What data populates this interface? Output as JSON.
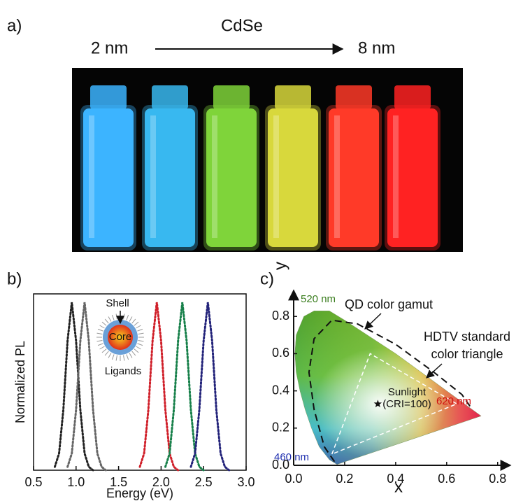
{
  "panel_a": {
    "label": "a)",
    "material": "CdSe",
    "size_start": "2 nm",
    "size_end": "8 nm"
  },
  "chart_data": [
    {
      "type": "line",
      "panel_label": "b)",
      "xlabel": "Energy (eV)",
      "ylabel": "Normalized PL",
      "xlim": [
        0.5,
        3.0
      ],
      "ylim": [
        0,
        1.05
      ],
      "xticks": [
        0.5,
        {
          "value": 1,
          "label": "1.0"
        },
        1.5,
        {
          "value": 2,
          "label": "2.0"
        },
        2.5,
        {
          "value": 3,
          "label": "3.0"
        }
      ],
      "annotations": {
        "shell": "Shell",
        "core": "Core",
        "ligands": "Ligands"
      },
      "series": [
        {
          "color": "#222222",
          "x": [
            0.75,
            0.8,
            0.85,
            0.9,
            0.95,
            1.0,
            1.05,
            1.1,
            1.15,
            1.2
          ],
          "values": [
            0.02,
            0.1,
            0.36,
            0.77,
            1,
            0.77,
            0.36,
            0.1,
            0.02,
            0
          ]
        },
        {
          "color": "#666666",
          "x": [
            0.9,
            0.95,
            1.0,
            1.05,
            1.1,
            1.15,
            1.2,
            1.25,
            1.3,
            1.35
          ],
          "values": [
            0.02,
            0.1,
            0.36,
            0.77,
            1,
            0.77,
            0.36,
            0.1,
            0.02,
            0
          ]
        },
        {
          "color": "#d0202a",
          "x": [
            1.75,
            1.8,
            1.85,
            1.9,
            1.95,
            2.0,
            2.05,
            2.1,
            2.15,
            2.2
          ],
          "values": [
            0.02,
            0.1,
            0.36,
            0.77,
            1,
            0.77,
            0.36,
            0.1,
            0.02,
            0
          ]
        },
        {
          "color": "#17804a",
          "x": [
            2.05,
            2.1,
            2.15,
            2.2,
            2.25,
            2.3,
            2.35,
            2.4,
            2.45,
            2.5
          ],
          "values": [
            0.02,
            0.1,
            0.36,
            0.77,
            1,
            0.77,
            0.36,
            0.1,
            0.02,
            0
          ]
        },
        {
          "color": "#23237a",
          "x": [
            2.35,
            2.4,
            2.45,
            2.5,
            2.55,
            2.6,
            2.65,
            2.7,
            2.75,
            2.8
          ],
          "values": [
            0.02,
            0.1,
            0.36,
            0.77,
            1,
            0.77,
            0.36,
            0.1,
            0.02,
            0
          ]
        }
      ]
    },
    {
      "type": "chromaticity",
      "panel_label": "c)",
      "xlabel": "x",
      "ylabel": "y",
      "xlim": [
        0,
        0.85
      ],
      "ylim": [
        0,
        0.94
      ],
      "xticks": [
        {
          "value": 0,
          "label": "0.0"
        },
        0.2,
        0.4,
        0.6,
        0.8
      ],
      "yticks": [
        {
          "value": 0,
          "label": "0.0"
        },
        0.2,
        0.4,
        0.6,
        0.8
      ],
      "spectral_locus": {
        "x": [
          0.17,
          0.14,
          0.1,
          0.07,
          0.045,
          0.025,
          0.01,
          0.005,
          0.01,
          0.04,
          0.08,
          0.14,
          0.2,
          0.3,
          0.4,
          0.5,
          0.6,
          0.7,
          0.735,
          0.17
        ],
        "values": [
          0.005,
          0.03,
          0.1,
          0.2,
          0.3,
          0.4,
          0.5,
          0.6,
          0.7,
          0.8,
          0.83,
          0.83,
          0.78,
          0.69,
          0.6,
          0.5,
          0.4,
          0.3,
          0.265,
          0.005
        ]
      },
      "qd_gamut": {
        "label": "QD color gamut",
        "x": [
          0.16,
          0.12,
          0.08,
          0.06,
          0.08,
          0.15,
          0.25,
          0.4,
          0.55,
          0.66,
          0.7
        ],
        "values": [
          0.02,
          0.1,
          0.3,
          0.5,
          0.68,
          0.78,
          0.76,
          0.65,
          0.5,
          0.38,
          0.3
        ]
      },
      "hdtv_triangle": {
        "label_lines": [
          "HDTV standard",
          "color triangle"
        ],
        "x": [
          0.15,
          0.3,
          0.64
        ],
        "values": [
          0.06,
          0.6,
          0.33
        ]
      },
      "sunlight": {
        "label_lines": [
          "Sunlight",
          "(CRI=100)"
        ],
        "x": 0.33,
        "y": 0.33
      },
      "wavelength_labels": [
        {
          "text": "520 nm",
          "color": "#3a7d1e"
        },
        {
          "text": "460 nm",
          "color": "#2030b0"
        },
        {
          "text": "620 nm",
          "color": "#d01010"
        }
      ]
    }
  ]
}
